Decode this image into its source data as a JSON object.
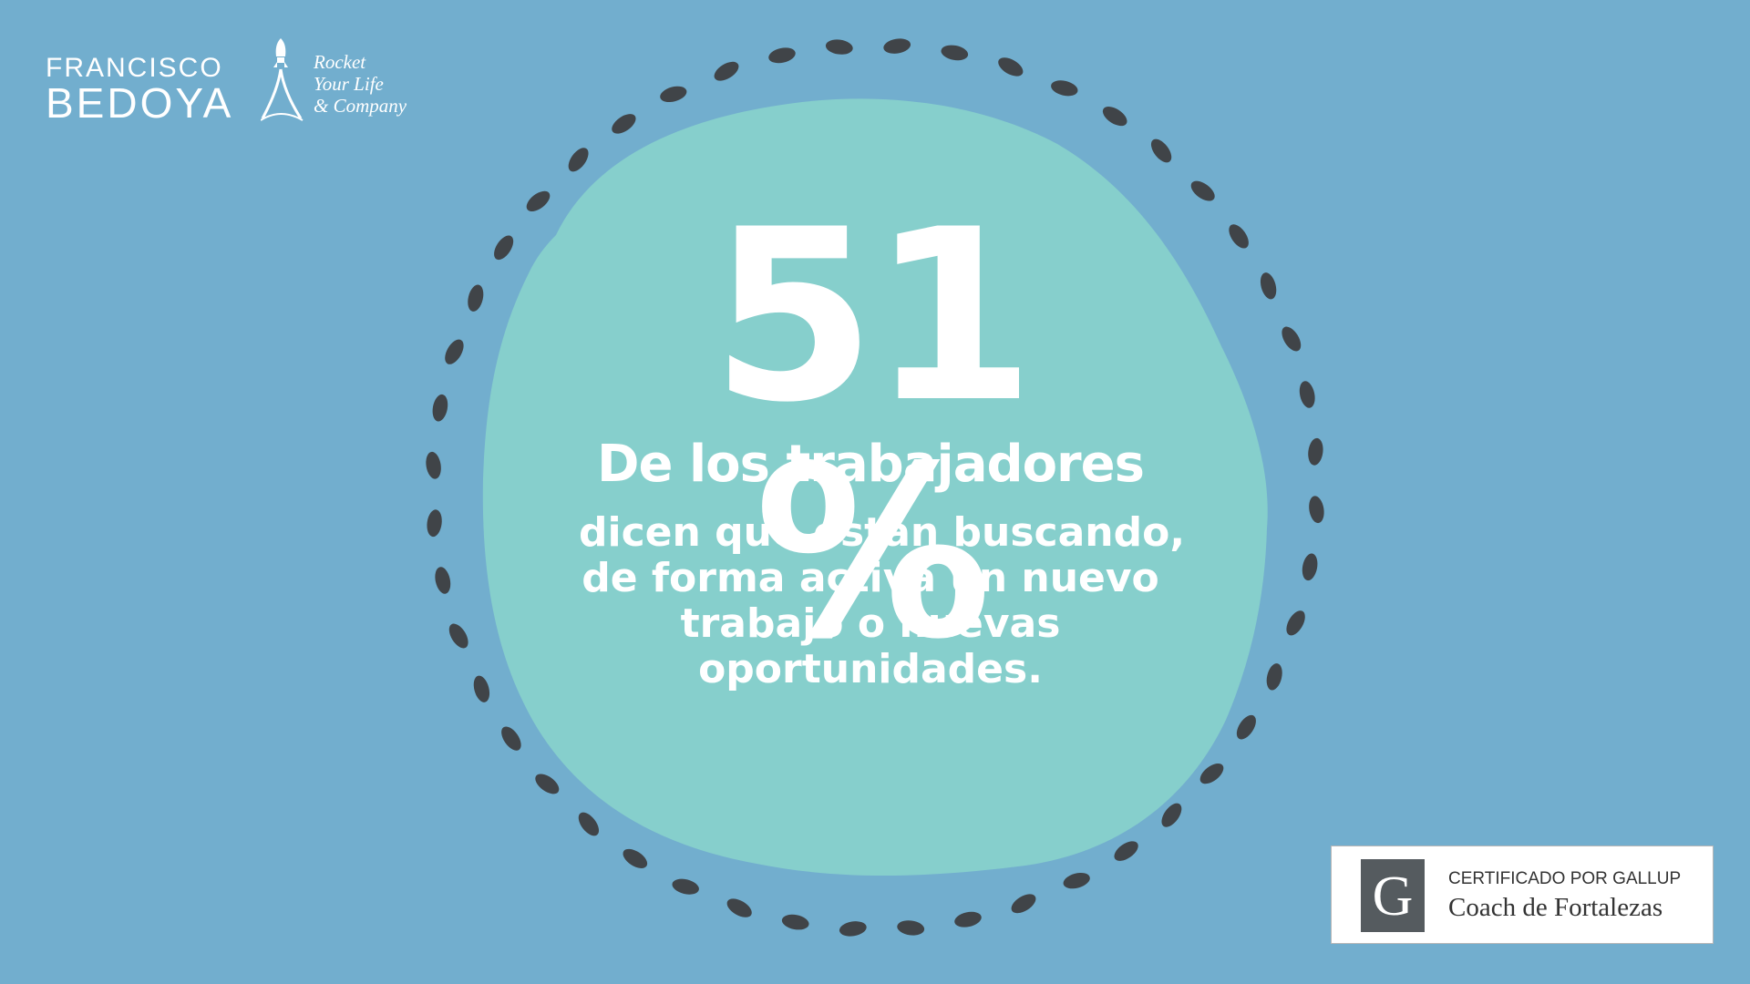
{
  "logo": {
    "name_first": "FRANCISCO",
    "name_last": "BEDOYA",
    "tagline": [
      "Rocket",
      "Your Life",
      "& Company"
    ],
    "rocket_icon": "rocket-icon"
  },
  "stat": {
    "percent": "51 %",
    "subhead": "De los trabajadores",
    "description_lines": [
      "dicen que están buscando,",
      "de forma activa un nuevo",
      "trabajo o nuevas",
      "oportunidades."
    ]
  },
  "badge": {
    "letter": "G",
    "line1": "CERTIFICADO POR GALLUP",
    "line2": "Coach de Fortalezas"
  },
  "colors": {
    "background": "#72aece",
    "blob": "#86cfcc",
    "dashes": "#404448",
    "text": "#ffffff",
    "badge_box": "#555b5f"
  }
}
